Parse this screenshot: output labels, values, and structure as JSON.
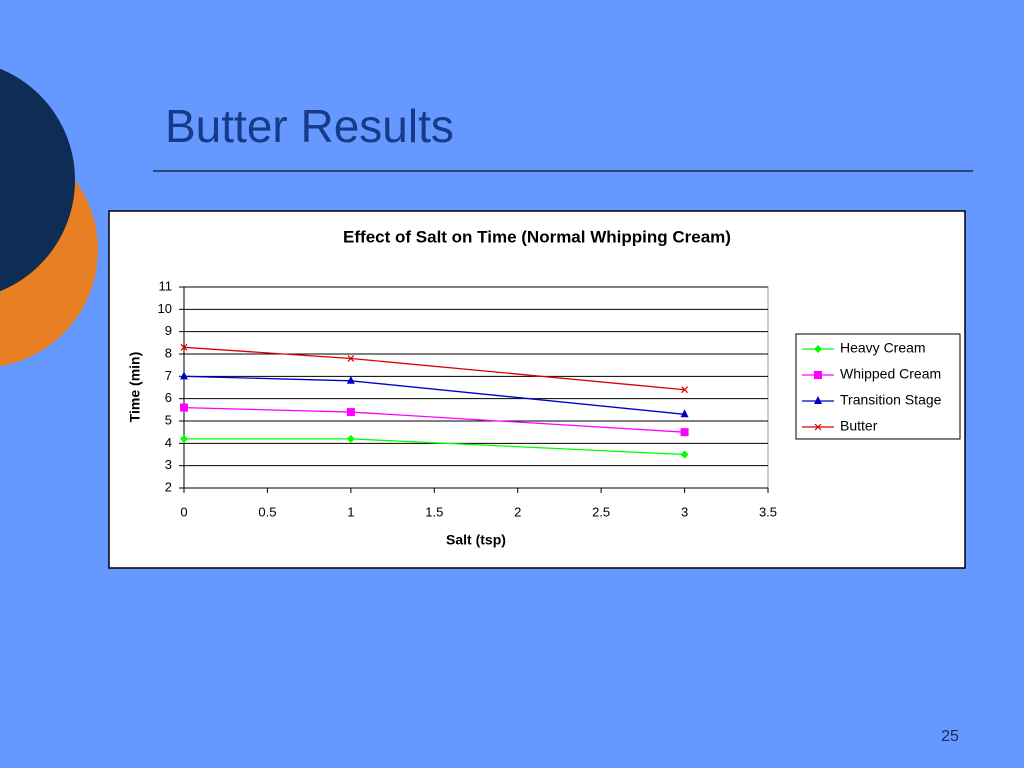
{
  "slide": {
    "title": "Butter Results",
    "page_number": "25"
  },
  "chart_data": {
    "type": "line",
    "title": "Effect of Salt on Time (Normal Whipping Cream)",
    "x_label": "Salt (tsp)",
    "y_label": "Time (min)",
    "x": [
      0,
      1,
      3
    ],
    "series": [
      {
        "name": "Heavy Cream",
        "color": "#00ff00",
        "marker": "diamond",
        "values": [
          4.2,
          4.2,
          3.5
        ]
      },
      {
        "name": "Whipped Cream",
        "color": "#ff00ff",
        "marker": "square",
        "values": [
          5.6,
          5.4,
          4.5
        ]
      },
      {
        "name": "Transition Stage",
        "color": "#0000cc",
        "marker": "triangle",
        "values": [
          7.0,
          6.8,
          5.3
        ]
      },
      {
        "name": "Butter",
        "color": "#dd0000",
        "marker": "x",
        "values": [
          8.3,
          7.8,
          6.4
        ]
      }
    ],
    "xlim": [
      0,
      3.5
    ],
    "xticks": [
      0,
      0.5,
      1,
      1.5,
      2,
      2.5,
      3,
      3.5
    ],
    "ylim": [
      2,
      11
    ],
    "yticks": [
      2,
      3,
      4,
      5,
      6,
      7,
      8,
      9,
      10,
      11
    ],
    "grid": true,
    "legend": "right"
  }
}
